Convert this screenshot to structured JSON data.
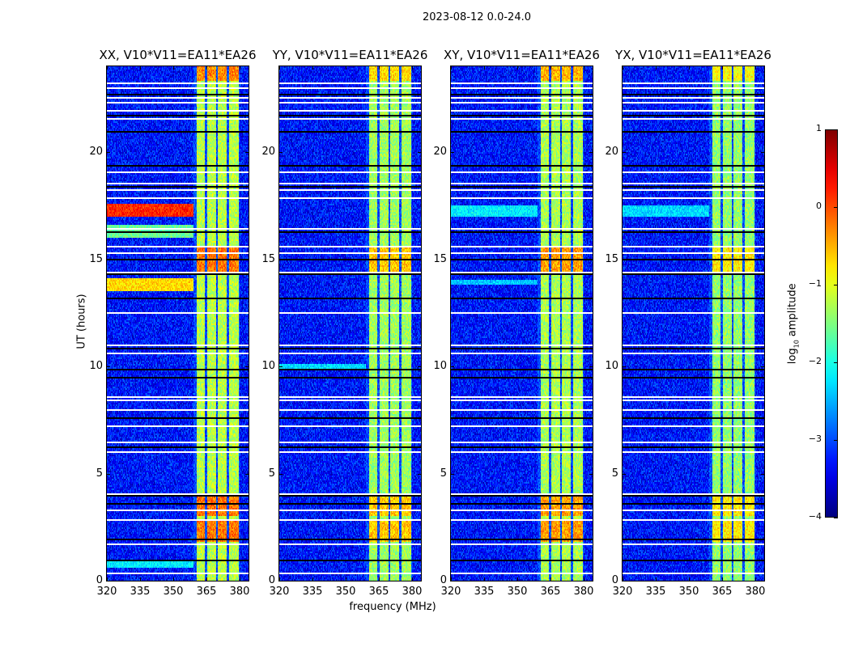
{
  "suptitle": "2023-08-12 0.0-24.0",
  "chart_data": {
    "type": "heatmap",
    "xlabel": "frequency (MHz)",
    "ylabel": "UT (hours)",
    "xlim": [
      320,
      384
    ],
    "ylim": [
      0,
      24
    ],
    "xticks": [
      "320",
      "335",
      "350",
      "365",
      "380"
    ],
    "xtick_values": [
      320,
      335,
      350,
      365,
      380
    ],
    "yticks": [
      "0",
      "5",
      "10",
      "15",
      "20"
    ],
    "ytick_values": [
      0,
      5,
      10,
      15,
      20
    ],
    "colormap": "jet",
    "colorbar": {
      "label_main": "log",
      "label_sub": "10",
      "label_rest": " amplitude",
      "range": [
        -4,
        1
      ],
      "ticks": [
        "1",
        "0",
        "−1",
        "−2",
        "−3",
        "−4"
      ],
      "tick_values": [
        1,
        0,
        -1,
        -2,
        -3,
        -4
      ]
    },
    "background_level": -3.3,
    "rfi_bands_mhz": [
      [
        360.5,
        364.3
      ],
      [
        365.2,
        369.3
      ],
      [
        370.2,
        374.3
      ],
      [
        375.2,
        379.5
      ]
    ],
    "rfi_band_level": -1.4,
    "flagged_hours_white": [
      0.4,
      1.75,
      2.85,
      3.3,
      4.1,
      6.05,
      6.5,
      7.25,
      8.0,
      8.45,
      8.6,
      10.65,
      11.0,
      12.55,
      14.45,
      15.35,
      15.6,
      16.45,
      17.9,
      18.25,
      18.6,
      19.1,
      21.55,
      22.0,
      22.35,
      22.6,
      23.0,
      23.25
    ],
    "flagged_hours_black": [
      1.0,
      2.0,
      3.6,
      4.0,
      6.3,
      7.6,
      9.5,
      9.9,
      10.9,
      13.2,
      14.35,
      15.0,
      16.3,
      18.4,
      19.4,
      21.0,
      21.7,
      22.7
    ],
    "panels": [
      {
        "title": "XX, V10*V11=EA11*EA26",
        "bright_intervals_hours": [
          [
            17.0,
            17.6,
            0.2
          ],
          [
            13.5,
            14.1,
            -0.7
          ],
          [
            16.0,
            16.6,
            -1.6
          ],
          [
            0.6,
            1.0,
            -2.2
          ]
        ],
        "band_boost": 0.6
      },
      {
        "title": "YY, V10*V11=EA11*EA26",
        "bright_intervals_hours": [
          [
            9.9,
            10.1,
            -2.3
          ]
        ],
        "band_boost": 0.2
      },
      {
        "title": "XY, V10*V11=EA11*EA26",
        "bright_intervals_hours": [
          [
            17.0,
            17.5,
            -2.2
          ],
          [
            13.8,
            14.0,
            -2.4
          ]
        ],
        "band_boost": 0.4
      },
      {
        "title": "YX, V10*V11=EA11*EA26",
        "bright_intervals_hours": [
          [
            17.0,
            17.5,
            -2.3
          ]
        ],
        "band_boost": 0.0
      }
    ]
  }
}
